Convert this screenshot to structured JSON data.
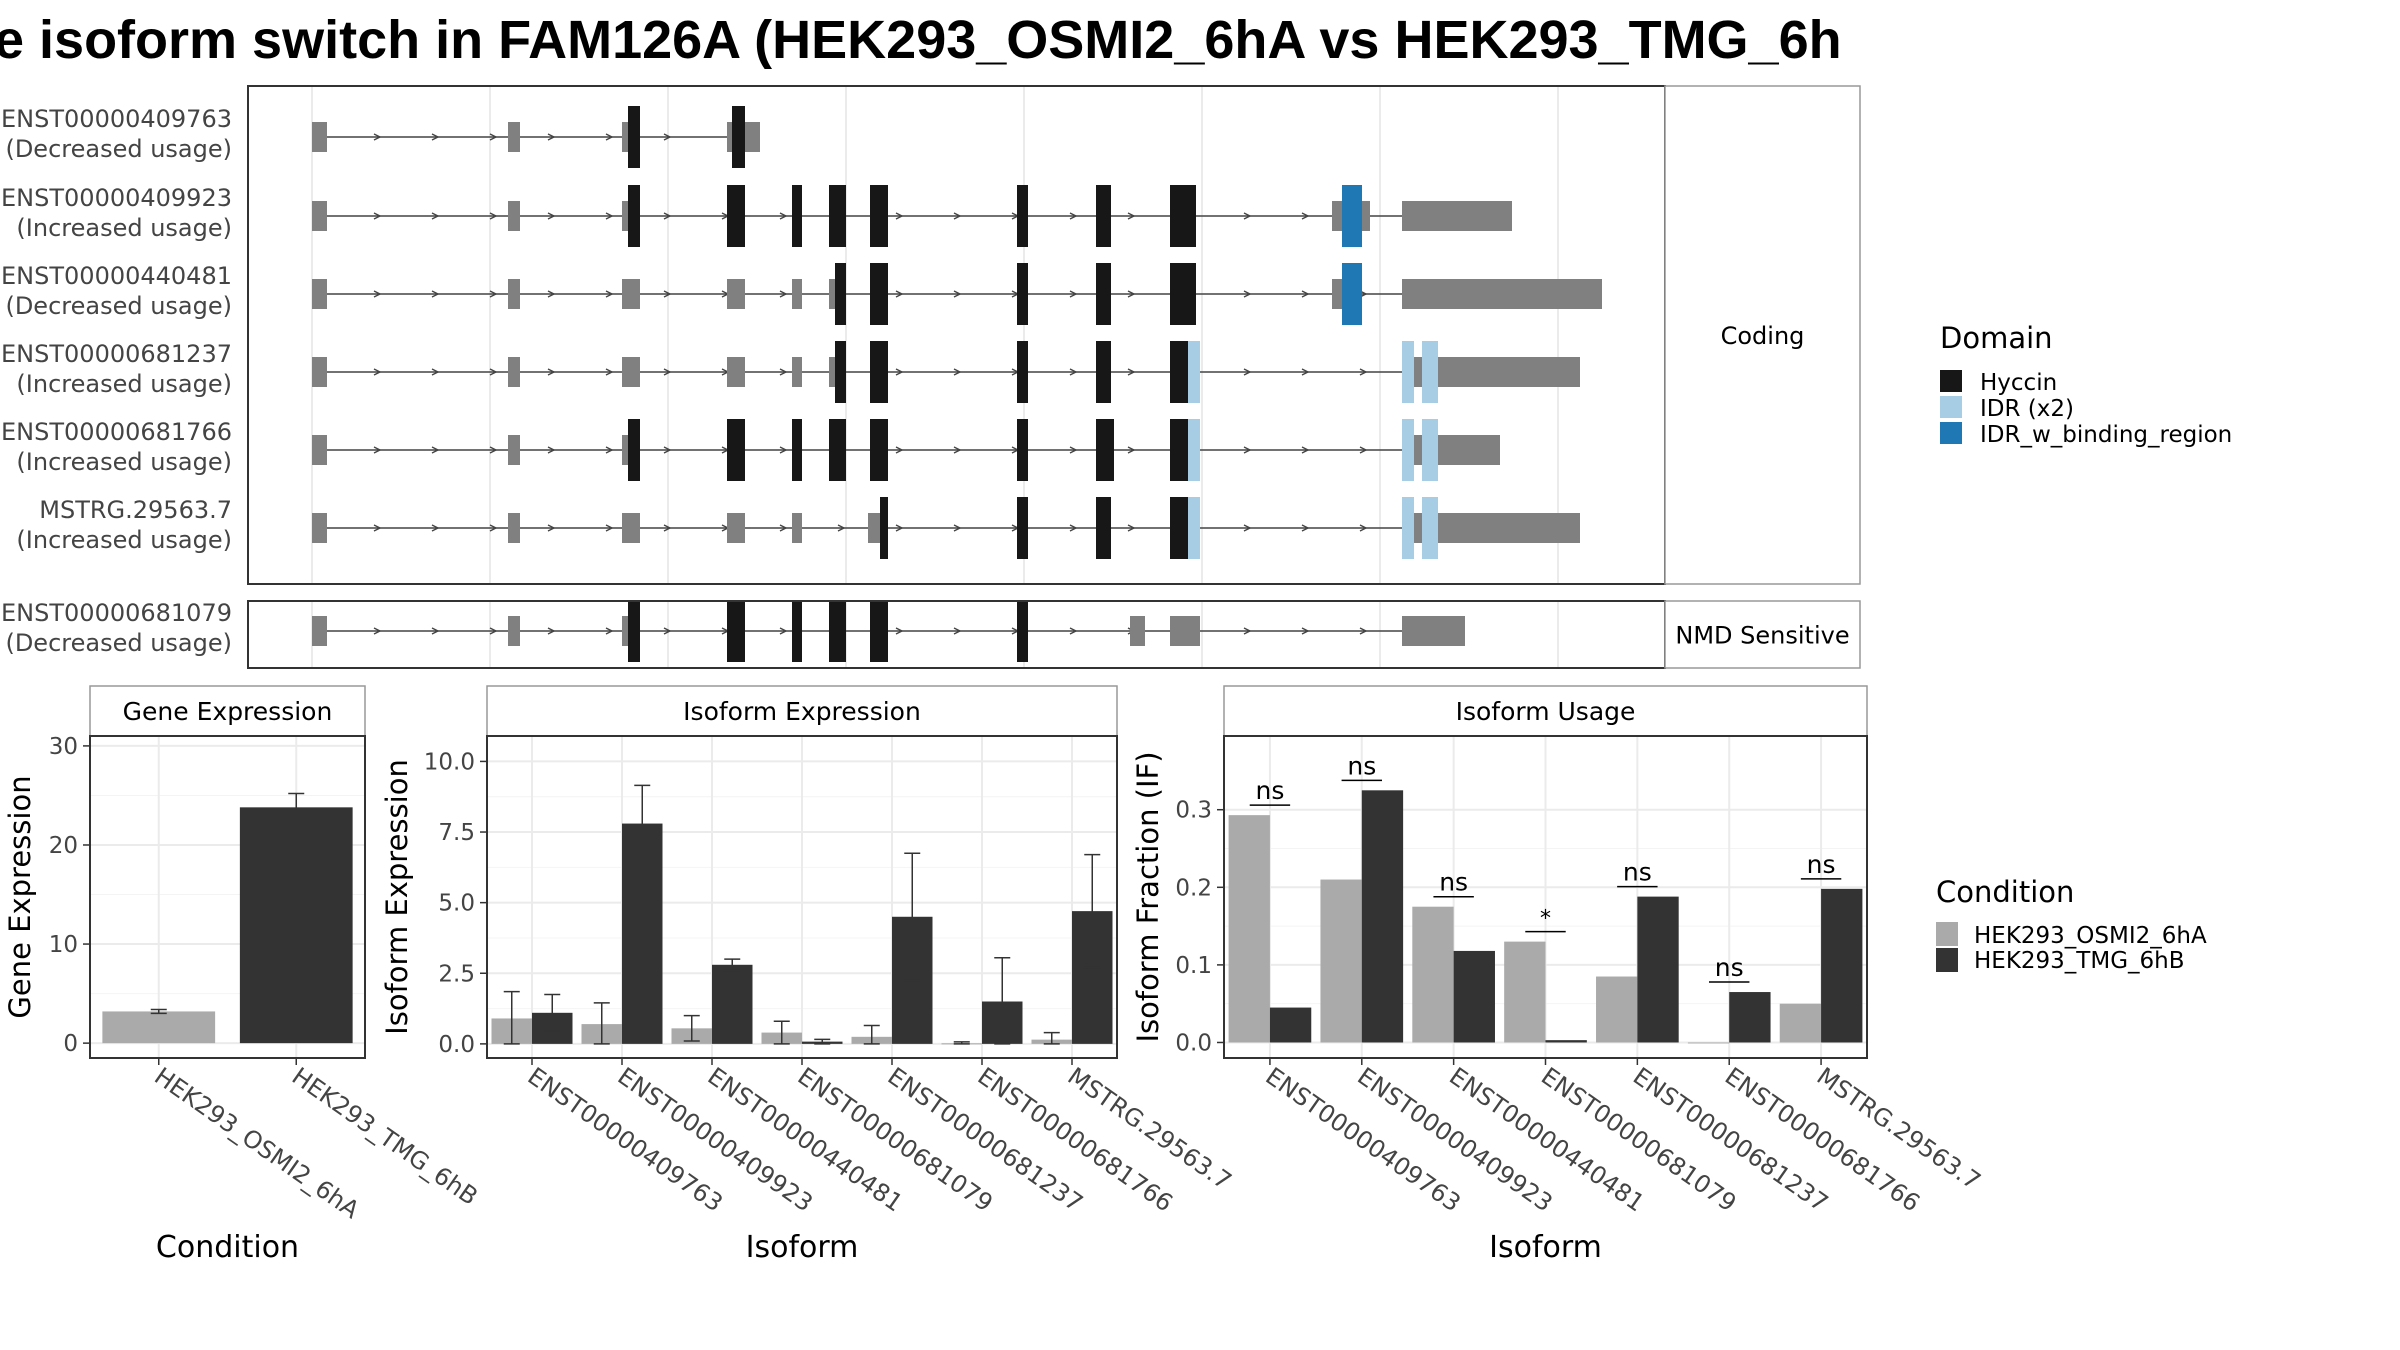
{
  "title": "e isoform switch in FAM126A (HEK293_OSMI2_6hA vs HEK293_TMG_6h",
  "colors": {
    "hyccin": "#171717",
    "idr": "#a6cde3",
    "idr_binding": "#1f78b4",
    "utr": "#808080",
    "osmi": "#aaaaaa",
    "tmg": "#333333"
  },
  "structure_panel": {
    "facets": [
      "Coding",
      "NMD Sensitive"
    ],
    "legend_title": "Domain",
    "legend_items": [
      "Hyccin",
      "IDR (x2)",
      "IDR_w_binding_region"
    ],
    "transcripts": [
      {
        "id": "ENST00000409763",
        "usage": "(Decreased usage)",
        "facet": 0
      },
      {
        "id": "ENST00000409923",
        "usage": "(Increased usage)",
        "facet": 0
      },
      {
        "id": "ENST00000440481",
        "usage": "(Decreased usage)",
        "facet": 0
      },
      {
        "id": "ENST00000681237",
        "usage": "(Increased usage)",
        "facet": 0
      },
      {
        "id": "ENST00000681766",
        "usage": "(Increased usage)",
        "facet": 0
      },
      {
        "id": "MSTRG.29563.7",
        "usage": "(Increased usage)",
        "facet": 0
      },
      {
        "id": "ENST00000681079",
        "usage": "(Decreased usage)",
        "facet": 1
      }
    ]
  },
  "condition_legend": {
    "title": "Condition",
    "items": [
      "HEK293_OSMI2_6hA",
      "HEK293_TMG_6hB"
    ]
  },
  "chart_data": [
    {
      "type": "bar",
      "title": "Gene Expression",
      "xlabel": "Condition",
      "ylabel": "Gene Expression",
      "ylim": [
        -1.5,
        31
      ],
      "yticks": [
        0,
        10,
        20,
        30
      ],
      "yticklabels": [
        "0",
        "10",
        "20",
        "30"
      ],
      "categories": [
        "HEK293_OSMI2_6hA",
        "HEK293_TMG_6hB"
      ],
      "values": [
        3.2,
        23.8
      ],
      "errors": [
        0.2,
        1.4
      ],
      "grid": true
    },
    {
      "type": "bar",
      "title": "Isoform Expression",
      "xlabel": "Isoform",
      "ylabel": "Isoform Expression",
      "ylim": [
        -0.5,
        10.9
      ],
      "yticks": [
        0,
        2.5,
        5,
        7.5,
        10
      ],
      "yticklabels": [
        "0.0",
        "2.5",
        "5.0",
        "7.5",
        "10.0"
      ],
      "categories": [
        "ENST00000409763",
        "ENST00000409923",
        "ENST00000440481",
        "ENST00000681079",
        "ENST00000681237",
        "ENST00000681766",
        "MSTRG.29563.7"
      ],
      "series": [
        {
          "name": "HEK293_OSMI2_6hA",
          "values": [
            0.9,
            0.7,
            0.55,
            0.4,
            0.25,
            0.02,
            0.15
          ],
          "errors": [
            0.95,
            0.75,
            0.45,
            0.4,
            0.4,
            0.05,
            0.25
          ]
        },
        {
          "name": "HEK293_TMG_6hB",
          "values": [
            1.1,
            7.8,
            2.8,
            0.08,
            4.5,
            1.5,
            4.7
          ],
          "errors": [
            0.65,
            1.35,
            0.2,
            0.08,
            2.25,
            1.55,
            2.0
          ]
        }
      ],
      "grid": true
    },
    {
      "type": "bar",
      "title": "Isoform Usage",
      "xlabel": "Isoform",
      "ylabel": "Isoform Fraction (IF)",
      "ylim": [
        -0.02,
        0.395
      ],
      "yticks": [
        0,
        0.1,
        0.2,
        0.3
      ],
      "yticklabels": [
        "0.0",
        "0.1",
        "0.2",
        "0.3"
      ],
      "categories": [
        "ENST00000409763",
        "ENST00000409923",
        "ENST00000440481",
        "ENST00000681079",
        "ENST00000681237",
        "ENST00000681766",
        "MSTRG.29563.7"
      ],
      "series": [
        {
          "name": "HEK293_OSMI2_6hA",
          "values": [
            0.293,
            0.21,
            0.175,
            0.13,
            0.085,
            0.0,
            0.05
          ]
        },
        {
          "name": "HEK293_TMG_6hB",
          "values": [
            0.045,
            0.325,
            0.118,
            0.003,
            0.188,
            0.065,
            0.198
          ]
        }
      ],
      "significance": [
        "ns",
        "ns",
        "ns",
        "*",
        "ns",
        "ns",
        "ns"
      ],
      "grid": true
    }
  ]
}
